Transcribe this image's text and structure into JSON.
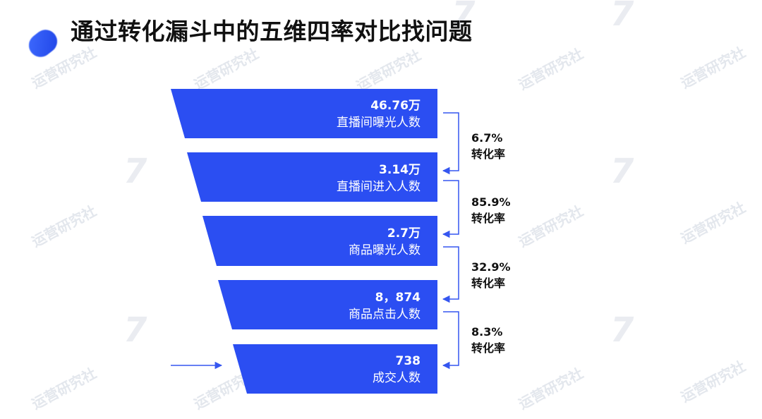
{
  "title": "通过转化漏斗中的五维四率对比找问题",
  "watermark_text": "运营研究社",
  "watermark_badge": "7",
  "colors": {
    "funnel": "#2b4ef2",
    "arrow": "#3556f0",
    "text": "#111111"
  },
  "stages": [
    {
      "value": "46.76万",
      "label": "直播间曝光人数"
    },
    {
      "value": "3.14万",
      "label": "直播间进入人数"
    },
    {
      "value": "2.7万",
      "label": "商品曝光人数"
    },
    {
      "value": "8，874",
      "label": "商品点击人数"
    },
    {
      "value": "738",
      "label": "成交人数"
    }
  ],
  "rates": [
    {
      "value": "6.7%",
      "label": "转化率"
    },
    {
      "value": "85.9%",
      "label": "转化率"
    },
    {
      "value": "32.9%",
      "label": "转化率"
    },
    {
      "value": "8.3%",
      "label": "转化率"
    }
  ]
}
